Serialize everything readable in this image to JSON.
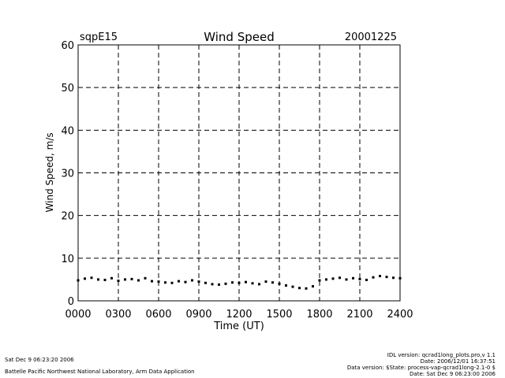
{
  "header": {
    "station": "sqpE15",
    "date": "20001225"
  },
  "chart_data": {
    "type": "scatter",
    "title": "Wind Speed",
    "xlabel": "Time (UT)",
    "ylabel": "Wind Speed, m/s",
    "xlim": [
      0,
      24
    ],
    "ylim": [
      0,
      60
    ],
    "x_ticks": [
      0,
      3,
      6,
      9,
      12,
      15,
      18,
      21,
      24
    ],
    "x_tick_labels": [
      "0000",
      "0300",
      "0600",
      "0900",
      "1200",
      "1500",
      "1800",
      "2100",
      "2400"
    ],
    "y_ticks": [
      0,
      10,
      20,
      30,
      40,
      50,
      60
    ],
    "y_tick_labels": [
      "0",
      "10",
      "20",
      "30",
      "40",
      "50",
      "60"
    ],
    "grid": true,
    "marker_color": "#000000",
    "series": [
      {
        "x": [
          0,
          0.5,
          1,
          1.5,
          2,
          2.5,
          3,
          3.5,
          4,
          4.5,
          5,
          5.5,
          6,
          6.5,
          7,
          7.5,
          8,
          8.5,
          9,
          9.5,
          10,
          10.5,
          11,
          11.5,
          12,
          12.5,
          13,
          13.5,
          14,
          14.5,
          15,
          15.5,
          16,
          16.5,
          17,
          17.5,
          18,
          18.5,
          19,
          19.5,
          20,
          20.5,
          21,
          21.5,
          22,
          22.5,
          23,
          23.5,
          24
        ],
        "y": [
          4.8,
          5.2,
          5.4,
          5.0,
          4.9,
          5.3,
          4.7,
          5.0,
          5.1,
          4.8,
          5.3,
          4.6,
          4.5,
          4.3,
          4.2,
          4.6,
          4.4,
          4.8,
          4.5,
          4.2,
          3.9,
          3.8,
          4.0,
          4.3,
          4.2,
          4.4,
          4.1,
          3.9,
          4.5,
          4.3,
          4.0,
          3.6,
          3.3,
          3.0,
          2.9,
          3.4,
          4.8,
          5.0,
          5.2,
          5.4,
          5.0,
          5.3,
          5.1,
          4.9,
          5.5,
          5.8,
          5.6,
          5.4,
          5.3
        ]
      }
    ]
  },
  "footer": {
    "left_line1": "Sat Dec  9 06:23:20 2006",
    "left_line2": "Battelle Pacific Northwest National Laboratory, Arm Data Application",
    "right_lines": [
      "IDL version: qcrad1long_plots.pro,v 1.1",
      "Date: 2006/12/01 16:37:51",
      "Data version: $State: process-vap-qcrad1long-2.1-0 $",
      "Date: Sat Dec  9 06:23:00 2006"
    ]
  }
}
